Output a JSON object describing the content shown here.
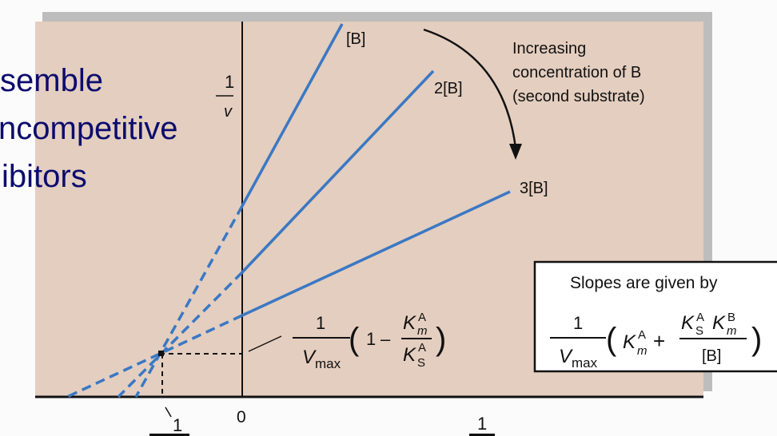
{
  "slide_text": [
    "semble",
    "ncompetitive",
    "ibitors"
  ],
  "axis": {
    "y_label_num": "1",
    "y_label_den": "v",
    "x_zero": "0",
    "x_label_num": "1",
    "x_intercept_label": "1"
  },
  "lines": [
    {
      "label": "[B]"
    },
    {
      "label": "2[B]"
    },
    {
      "label": "3[B]"
    }
  ],
  "annotation": [
    "Increasing",
    "concentration of B",
    "(second substrate)"
  ],
  "intersection_formula": {
    "num": "1",
    "den": "V",
    "den_sub": "max",
    "one": "1",
    "minus": "–",
    "k1": "K",
    "k1_sub": "m",
    "k1_sup": "A",
    "k2": "K",
    "k2_sub": "S",
    "k2_sup": "A"
  },
  "slopes_box": {
    "title": "Slopes are given by",
    "num": "1",
    "den": "V",
    "den_sub": "max",
    "t1": "K",
    "t1_sub": "m",
    "t1_sup": "A",
    "plus": "+",
    "t2a": "K",
    "t2a_sub": "S",
    "t2a_sup": "A",
    "t2b": "K",
    "t2b_sub": "m",
    "t2b_sup": "B",
    "t2_den": "[B]"
  },
  "colors": {
    "panel": "#e4cebf",
    "shadow": "#bdbdbd",
    "line": "#3a78c4",
    "slide_text": "#0c0c6e"
  }
}
